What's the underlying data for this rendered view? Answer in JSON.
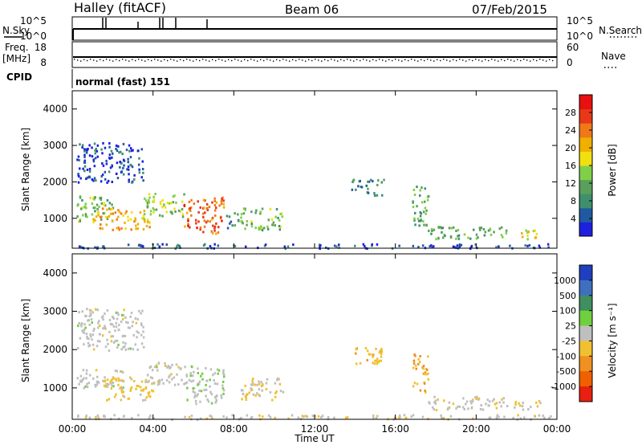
{
  "header": {
    "station": "Halley (fitACF)",
    "beam": "Beam 06",
    "date": "07/Feb/2015"
  },
  "status_panels": {
    "nsky_label": "N.Sky",
    "nsearch_label": "N.Search",
    "freq_label": "Freq.",
    "freq_unit": "[MHz]",
    "nave_label": "Nave",
    "cpid_label": "CPID",
    "cpid_value": "normal (fast) 151",
    "noise_left_ticks": [
      "10^5",
      "10^0"
    ],
    "noise_right_ticks": [
      "10^5",
      "10^0"
    ],
    "freq_left_ticks": [
      "18",
      "8"
    ],
    "freq_right_ticks": [
      "60",
      "0"
    ]
  },
  "colors": {
    "power_scale": [
      "#1f1fe0",
      "#1f5aa0",
      "#3f8f6f",
      "#5aa05a",
      "#7fd048",
      "#f0e010",
      "#f0b000",
      "#f07818",
      "#e83818",
      "#e81010"
    ],
    "velocity_scale": [
      "#1f3fbf",
      "#3f6fbf",
      "#3f8f5f",
      "#6fcf3f",
      "#bfbfbf",
      "#f0c030",
      "#f09020",
      "#f06000",
      "#e82010"
    ]
  },
  "chart_data": [
    {
      "type": "heatmap",
      "panel": "power",
      "xlabel": "",
      "ylabel": "Slant Range [km]",
      "ylim": [
        180,
        4500
      ],
      "xlim": [
        0,
        24
      ],
      "x_ticks": [
        "00:00",
        "04:00",
        "08:00",
        "12:00",
        "16:00",
        "20:00",
        "00:00"
      ],
      "y_ticks": [
        1000,
        2000,
        3000,
        4000
      ],
      "colorbar_label": "Power [dB]",
      "colorbar_ticks": [
        "4",
        "8",
        "12",
        "16",
        "20",
        "24",
        "28"
      ],
      "colorbar_range": [
        0,
        30
      ],
      "patches": [
        {
          "t0": 0.2,
          "t1": 2.0,
          "r0": 900,
          "r1": 1650,
          "v": 12
        },
        {
          "t0": 1.0,
          "t1": 3.8,
          "r0": 700,
          "r1": 1300,
          "v": 20
        },
        {
          "t0": 3.5,
          "t1": 5.5,
          "r0": 1000,
          "r1": 1700,
          "v": 14
        },
        {
          "t0": 5.5,
          "t1": 7.5,
          "r0": 600,
          "r1": 1600,
          "v": 24
        },
        {
          "t0": 7.6,
          "t1": 8.2,
          "r0": 700,
          "r1": 1200,
          "v": 8
        },
        {
          "t0": 8.3,
          "t1": 10.4,
          "r0": 700,
          "r1": 1300,
          "v": 12
        },
        {
          "t0": 0.2,
          "t1": 3.5,
          "r0": 2000,
          "r1": 3100,
          "v": 4
        },
        {
          "t0": 13.8,
          "t1": 15.4,
          "r0": 1650,
          "r1": 2100,
          "v": 8
        },
        {
          "t0": 16.8,
          "t1": 17.6,
          "r0": 700,
          "r1": 1900,
          "v": 10
        },
        {
          "t0": 17.6,
          "t1": 21.5,
          "r0": 450,
          "r1": 800,
          "v": 10
        },
        {
          "t0": 21.8,
          "t1": 23.2,
          "r0": 450,
          "r1": 700,
          "v": 16
        },
        {
          "t0": 0.2,
          "t1": 23.8,
          "r0": 200,
          "r1": 320,
          "v": 4
        }
      ]
    },
    {
      "type": "heatmap",
      "panel": "velocity",
      "xlabel": "Time UT",
      "ylabel": "Slant Range [km]",
      "ylim": [
        180,
        4500
      ],
      "xlim": [
        0,
        24
      ],
      "x_ticks": [
        "00:00",
        "04:00",
        "08:00",
        "12:00",
        "16:00",
        "20:00",
        "00:00"
      ],
      "y_ticks": [
        1000,
        2000,
        3000,
        4000
      ],
      "colorbar_label": "Velocity [m s⁻¹]",
      "colorbar_ticks": [
        "1000",
        "500",
        "100",
        "25",
        "-25",
        "-100",
        "-500",
        "-1000"
      ],
      "colorbar_range": [
        -1200,
        1200
      ],
      "patches": [
        {
          "t0": 0.2,
          "t1": 2.5,
          "r0": 1000,
          "r1": 1500,
          "v": 0
        },
        {
          "t0": 1.5,
          "t1": 4.0,
          "r0": 700,
          "r1": 1300,
          "v": -200
        },
        {
          "t0": 3.5,
          "t1": 5.5,
          "r0": 1100,
          "r1": 1700,
          "v": 0
        },
        {
          "t0": 5.5,
          "t1": 7.5,
          "r0": 600,
          "r1": 1600,
          "v": 80
        },
        {
          "t0": 8.3,
          "t1": 10.4,
          "r0": 700,
          "r1": 1300,
          "v": -150
        },
        {
          "t0": 0.2,
          "t1": 3.5,
          "r0": 2000,
          "r1": 3100,
          "v": 0
        },
        {
          "t0": 13.8,
          "t1": 15.4,
          "r0": 1650,
          "r1": 2100,
          "v": -300
        },
        {
          "t0": 16.8,
          "t1": 17.6,
          "r0": 900,
          "r1": 1900,
          "v": -400
        },
        {
          "t0": 17.6,
          "t1": 21.5,
          "r0": 450,
          "r1": 800,
          "v": -80
        },
        {
          "t0": 21.8,
          "t1": 23.2,
          "r0": 450,
          "r1": 700,
          "v": -120
        },
        {
          "t0": 0.2,
          "t1": 23.8,
          "r0": 200,
          "r1": 320,
          "v": -40
        }
      ]
    }
  ]
}
